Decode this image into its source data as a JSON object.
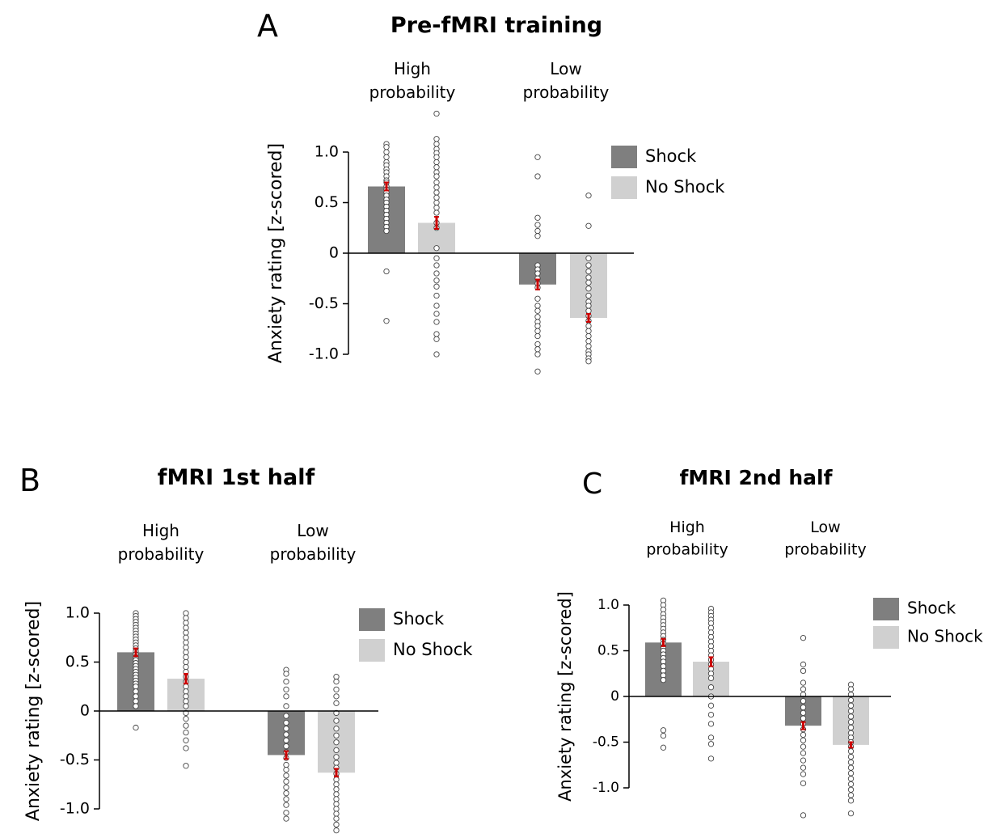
{
  "colors": {
    "shock": "#7f7f7f",
    "no_shock": "#d0d0d0",
    "error_bar": "#cc0000",
    "point": "#ffffff",
    "point_stroke": "#444444"
  },
  "chart_data": [
    {
      "type": "bar",
      "panel_letter": "A",
      "title": "Pre-fMRI training",
      "ylabel": "Anxiety rating [z-scored]",
      "ylim": [
        -1.0,
        1.0
      ],
      "yticks": [
        "1.0",
        "0.5",
        "0",
        "-0.5",
        "-1.0"
      ],
      "groups": [
        "High probability",
        "Low probability"
      ],
      "legend": [
        "Shock",
        "No Shock"
      ],
      "legend_position": "top-right",
      "series": [
        {
          "name": "Shock",
          "values": [
            0.66,
            -0.31
          ],
          "errors": [
            0.04,
            0.05
          ]
        },
        {
          "name": "No Shock",
          "values": [
            0.3,
            -0.64
          ],
          "errors": [
            0.06,
            0.04
          ]
        }
      ],
      "points": [
        [
          1.08,
          1.05,
          1.0,
          0.95,
          0.9,
          0.87,
          0.83,
          0.8,
          0.76,
          0.72,
          0.7,
          0.66,
          0.63,
          0.6,
          0.57,
          0.53,
          0.5,
          0.46,
          0.42,
          0.38,
          0.34,
          0.3,
          0.26,
          0.22,
          -0.18,
          -0.67
        ],
        [
          1.38,
          1.13,
          1.08,
          1.03,
          0.99,
          0.95,
          0.9,
          0.85,
          0.8,
          0.76,
          0.7,
          0.65,
          0.6,
          0.55,
          0.5,
          0.45,
          0.4,
          0.3,
          0.25,
          0.05,
          -0.05,
          -0.12,
          -0.2,
          -0.27,
          -0.33,
          -0.42,
          -0.52,
          -0.6,
          -0.68,
          -0.8,
          -0.85,
          -1.0
        ],
        [
          0.95,
          0.76,
          0.35,
          0.28,
          0.22,
          0.17,
          -0.12,
          -0.16,
          -0.2,
          -0.25,
          -0.3,
          -0.34,
          -0.45,
          -0.52,
          -0.57,
          -0.63,
          -0.68,
          -0.72,
          -0.77,
          -0.82,
          -0.9,
          -0.95,
          -1.0,
          -1.17
        ],
        [
          0.57,
          0.27,
          -0.05,
          -0.12,
          -0.18,
          -0.24,
          -0.29,
          -0.35,
          -0.42,
          -0.48,
          -0.52,
          -0.57,
          -0.62,
          -0.67,
          -0.72,
          -0.77,
          -0.82,
          -0.87,
          -0.92,
          -0.97,
          -1.0,
          -1.04,
          -1.07
        ]
      ]
    },
    {
      "type": "bar",
      "panel_letter": "B",
      "title": "fMRI 1st half",
      "ylabel": "Anxiety rating [z-scored]",
      "ylim": [
        -1.0,
        1.0
      ],
      "yticks": [
        "1.0",
        "0.5",
        "0",
        "-0.5",
        "-1.0"
      ],
      "groups": [
        "High probability",
        "Low probability"
      ],
      "legend": [
        "Shock",
        "No Shock"
      ],
      "legend_position": "top-right",
      "series": [
        {
          "name": "Shock",
          "values": [
            0.6,
            -0.45
          ],
          "errors": [
            0.04,
            0.04
          ]
        },
        {
          "name": "No Shock",
          "values": [
            0.33,
            -0.63
          ],
          "errors": [
            0.05,
            0.04
          ]
        }
      ],
      "points": [
        [
          1.0,
          0.97,
          0.94,
          0.91,
          0.88,
          0.85,
          0.82,
          0.79,
          0.76,
          0.73,
          0.7,
          0.67,
          0.64,
          0.61,
          0.58,
          0.55,
          0.52,
          0.49,
          0.46,
          0.43,
          0.4,
          0.37,
          0.34,
          0.31,
          0.28,
          0.25,
          0.2,
          0.15,
          0.1,
          0.05,
          -0.17
        ],
        [
          1.0,
          0.95,
          0.9,
          0.85,
          0.8,
          0.75,
          0.7,
          0.65,
          0.6,
          0.55,
          0.5,
          0.45,
          0.4,
          0.35,
          0.3,
          0.25,
          0.2,
          0.15,
          0.1,
          0.05,
          -0.02,
          -0.08,
          -0.15,
          -0.22,
          -0.3,
          -0.38,
          -0.56
        ],
        [
          0.42,
          0.38,
          0.3,
          0.22,
          0.15,
          0.05,
          -0.05,
          -0.12,
          -0.18,
          -0.24,
          -0.3,
          -0.36,
          -0.42,
          -0.48,
          -0.55,
          -0.6,
          -0.66,
          -0.72,
          -0.78,
          -0.84,
          -0.9,
          -0.96,
          -1.04,
          -1.1
        ],
        [
          0.35,
          0.3,
          0.22,
          0.15,
          0.08,
          -0.02,
          -0.1,
          -0.18,
          -0.25,
          -0.32,
          -0.4,
          -0.47,
          -0.53,
          -0.58,
          -0.64,
          -0.7,
          -0.75,
          -0.8,
          -0.85,
          -0.9,
          -0.95,
          -1.0,
          -1.05,
          -1.1,
          -1.16,
          -1.22
        ]
      ]
    },
    {
      "type": "bar",
      "panel_letter": "C",
      "title": "fMRI 2nd half",
      "ylabel": "Anxiety rating [z-scored]",
      "ylim": [
        -1.0,
        1.0
      ],
      "yticks": [
        "1.0",
        "0.5",
        "0",
        "-0.5",
        "-1.0"
      ],
      "groups": [
        "High probability",
        "Low probability"
      ],
      "legend": [
        "Shock",
        "No Shock"
      ],
      "legend_position": "top-right",
      "series": [
        {
          "name": "Shock",
          "values": [
            0.59,
            -0.32
          ],
          "errors": [
            0.04,
            0.04
          ]
        },
        {
          "name": "No Shock",
          "values": [
            0.38,
            -0.53
          ],
          "errors": [
            0.05,
            0.03
          ]
        }
      ],
      "points": [
        [
          1.05,
          1.0,
          0.95,
          0.9,
          0.86,
          0.82,
          0.78,
          0.74,
          0.7,
          0.66,
          0.62,
          0.58,
          0.54,
          0.5,
          0.46,
          0.42,
          0.38,
          0.33,
          0.28,
          0.23,
          0.18,
          -0.37,
          -0.43,
          -0.56
        ],
        [
          0.96,
          0.92,
          0.88,
          0.84,
          0.8,
          0.75,
          0.7,
          0.65,
          0.6,
          0.55,
          0.5,
          0.45,
          0.4,
          0.35,
          0.3,
          0.25,
          0.2,
          0.1,
          0.0,
          -0.1,
          -0.2,
          -0.3,
          -0.45,
          -0.52,
          -0.68
        ],
        [
          0.64,
          0.35,
          0.28,
          0.15,
          0.08,
          0.02,
          -0.05,
          -0.12,
          -0.18,
          -0.24,
          -0.3,
          -0.36,
          -0.42,
          -0.48,
          -0.55,
          -0.62,
          -0.7,
          -0.78,
          -0.85,
          -0.95,
          -1.3
        ],
        [
          0.13,
          0.08,
          0.02,
          -0.04,
          -0.1,
          -0.16,
          -0.22,
          -0.28,
          -0.34,
          -0.4,
          -0.45,
          -0.5,
          -0.55,
          -0.6,
          -0.66,
          -0.72,
          -0.78,
          -0.84,
          -0.9,
          -0.96,
          -1.02,
          -1.08,
          -1.14,
          -1.28
        ]
      ]
    }
  ]
}
